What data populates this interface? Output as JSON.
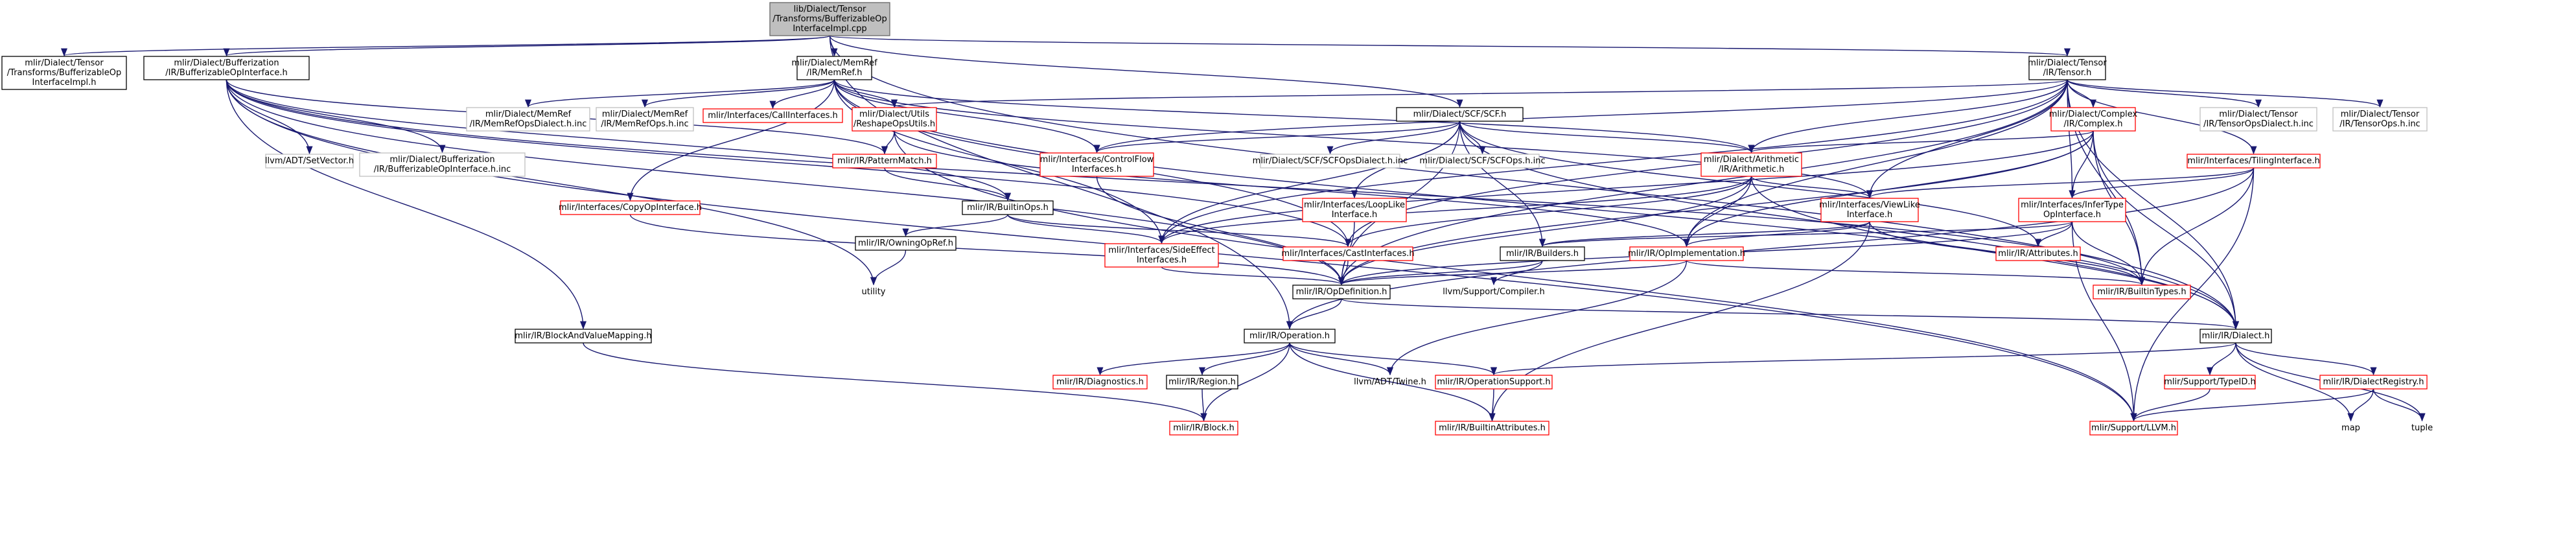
{
  "colors": {
    "edge": "#191970",
    "border_documented": "#000000",
    "border_undocumented": "#ff0000",
    "border_external": "#bfbfbf",
    "root_fill": "#bfbfbf"
  },
  "nodes": {
    "root": [
      "lib/Dialect/Tensor",
      "/Transforms/BufferizableOp",
      "InterfaceImpl.cpp"
    ],
    "tensor_bufop_h": [
      "mlir/Dialect/Tensor",
      "/Transforms/BufferizableOp",
      "InterfaceImpl.h"
    ],
    "bufferizable_op_interface_h": [
      "mlir/Dialect/Bufferization",
      "/IR/BufferizableOpInterface.h"
    ],
    "memref_h": [
      "mlir/Dialect/MemRef",
      "/IR/MemRef.h"
    ],
    "scf_h": [
      "mlir/Dialect/SCF/SCF.h"
    ],
    "tensor_h": [
      "mlir/Dialect/Tensor",
      "/IR/Tensor.h"
    ],
    "dialect_h": [
      "mlir/IR/Dialect.h"
    ],
    "memref_ops_dialect_inc": [
      "mlir/Dialect/MemRef",
      "/IR/MemRefOpsDialect.h.inc"
    ],
    "memref_ops_inc": [
      "mlir/Dialect/MemRef",
      "/IR/MemRefOps.h.inc"
    ],
    "call_interfaces_h": [
      "mlir/Interfaces/CallInterfaces.h"
    ],
    "reshape_ops_utils_h": [
      "mlir/Dialect/Utils",
      "/ReshapeOpsUtils.h"
    ],
    "control_flow_interfaces_h": [
      "mlir/Interfaces/ControlFlow",
      "Interfaces.h"
    ],
    "scf_ops_dialect_inc": [
      "mlir/Dialect/SCF/SCFOpsDialect.h.inc"
    ],
    "scf_ops_inc": [
      "mlir/Dialect/SCF/SCFOps.h.inc"
    ],
    "arithmetic_h": [
      "mlir/Dialect/Arithmetic",
      "/IR/Arithmetic.h"
    ],
    "complex_h": [
      "mlir/Dialect/Complex",
      "/IR/Complex.h"
    ],
    "tensor_ops_dialect_inc": [
      "mlir/Dialect/Tensor",
      "/IR/TensorOpsDialect.h.inc"
    ],
    "tensor_ops_inc": [
      "mlir/Dialect/Tensor",
      "/IR/TensorOps.h.inc"
    ],
    "llvm_setvector": [
      "llvm/ADT/SetVector.h"
    ],
    "bufferizable_op_interface_inc": [
      "mlir/Dialect/Bufferization",
      "/IR/BufferizableOpInterface.h.inc"
    ],
    "pattern_match_h": [
      "mlir/IR/PatternMatch.h"
    ],
    "copy_op_interface_h": [
      "mlir/Interfaces/CopyOpInterface.h"
    ],
    "builtin_ops_h": [
      "mlir/IR/BuiltinOps.h"
    ],
    "owning_op_ref_h": [
      "mlir/IR/OwningOpRef.h"
    ],
    "utility": [
      "utility"
    ],
    "loop_like_interface_h": [
      "mlir/Interfaces/LoopLike",
      "Interface.h"
    ],
    "side_effect_interfaces_h": [
      "mlir/Interfaces/SideEffect",
      "Interfaces.h"
    ],
    "cast_interfaces_h": [
      "mlir/Interfaces/CastInterfaces.h"
    ],
    "builders_h": [
      "mlir/IR/Builders.h"
    ],
    "view_like_interface_h": [
      "mlir/Interfaces/ViewLike",
      "Interface.h"
    ],
    "op_implementation_h": [
      "mlir/IR/OpImplementation.h"
    ],
    "tiling_interface_h": [
      "mlir/Interfaces/TilingInterface.h"
    ],
    "infer_type_op_interface_h": [
      "mlir/Interfaces/InferType",
      "OpInterface.h"
    ],
    "attributes_h": [
      "mlir/IR/Attributes.h"
    ],
    "op_definition_h": [
      "mlir/IR/OpDefinition.h"
    ],
    "llvm_compiler_h": [
      "llvm/Support/Compiler.h"
    ],
    "builtin_types_h": [
      "mlir/IR/BuiltinTypes.h"
    ],
    "block_and_value_mapping_h": [
      "mlir/IR/BlockAndValueMapping.h"
    ],
    "operation_h": [
      "mlir/IR/Operation.h"
    ],
    "diagnostics_h": [
      "mlir/IR/Diagnostics.h"
    ],
    "region_h": [
      "mlir/IR/Region.h"
    ],
    "llvm_twine_h": [
      "llvm/ADT/Twine.h"
    ],
    "operation_support_h": [
      "mlir/IR/OperationSupport.h"
    ],
    "block_h": [
      "mlir/IR/Block.h"
    ],
    "builtin_attributes_h": [
      "mlir/IR/BuiltinAttributes.h"
    ],
    "type_id_h": [
      "mlir/Support/TypeID.h"
    ],
    "dialect_registry_h": [
      "mlir/IR/DialectRegistry.h"
    ],
    "support_llvm_h": [
      "mlir/Support/LLVM.h"
    ],
    "map": [
      "map"
    ],
    "tuple": [
      "tuple"
    ]
  }
}
